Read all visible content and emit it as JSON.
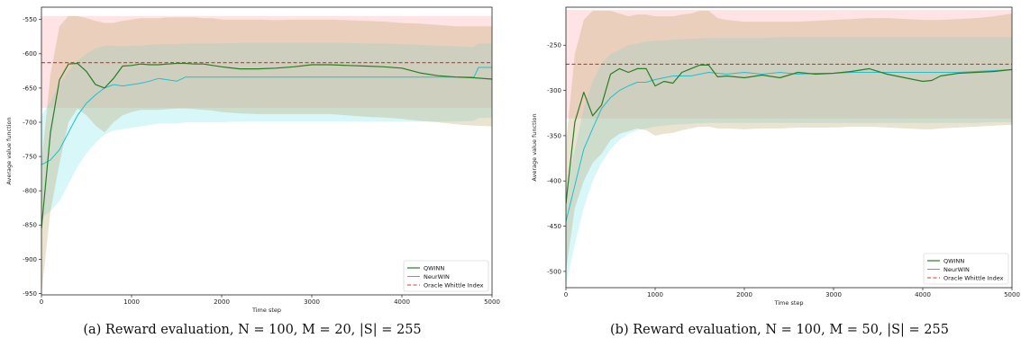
{
  "colors": {
    "qwinn": "#2a7d23",
    "neurwin": "#22bfcf",
    "oracle": "#e0302a",
    "qwinn_band": "#b39a55",
    "neurwin_band": "#7fe5ea",
    "oracle_band": "#ff9aa2"
  },
  "captions": {
    "a": "(a) Reward evaluation, N = 100, M = 20, |S| = 255",
    "b": "(b) Reward evaluation, N = 100, M = 50, |S| = 255"
  },
  "chart_data": [
    {
      "type": "line",
      "xlabel": "Time step",
      "ylabel": "Average value function",
      "xlim": [
        0,
        5000
      ],
      "ylim": [
        -952,
        -532
      ],
      "xticks": [
        0,
        1000,
        2000,
        3000,
        4000,
        5000
      ],
      "xtick_labels": [
        "0",
        "1000",
        "2000",
        "3000",
        "4000",
        "5000"
      ],
      "yticks": [
        -550,
        -600,
        -650,
        -700,
        -750,
        -800,
        -850,
        -900,
        -950
      ],
      "ytick_labels": [
        "-550",
        "-600",
        "-650",
        "-700",
        "-750",
        "-800",
        "-850",
        "-900",
        "-950"
      ],
      "legend": {
        "placement": "lower-right",
        "entries": [
          "QWINN",
          "NeurWIN",
          "Oracle Whittle Index"
        ]
      },
      "series": [
        {
          "name": "QWINN",
          "x": [
            0,
            100,
            200,
            300,
            400,
            500,
            600,
            700,
            800,
            900,
            1000,
            1100,
            1200,
            1300,
            1400,
            1500,
            1600,
            1700,
            1800,
            1900,
            2000,
            2200,
            2400,
            2600,
            2800,
            3000,
            3200,
            3400,
            3600,
            3800,
            4000,
            4200,
            4400,
            4600,
            4800,
            5000
          ],
          "y": [
            -855,
            -715,
            -638,
            -615,
            -614,
            -626,
            -645,
            -650,
            -636,
            -618,
            -617,
            -615,
            -616,
            -616,
            -615,
            -614,
            -614,
            -615,
            -615,
            -617,
            -619,
            -622,
            -622,
            -621,
            -619,
            -616,
            -616,
            -617,
            -618,
            -619,
            -621,
            -628,
            -632,
            -634,
            -635,
            -637
          ],
          "band_upper": [
            -760,
            -630,
            -560,
            -545,
            -545,
            -548,
            -552,
            -555,
            -555,
            -552,
            -550,
            -548,
            -548,
            -548,
            -547,
            -547,
            -547,
            -547,
            -548,
            -548,
            -550,
            -550,
            -550,
            -551,
            -550,
            -550,
            -550,
            -551,
            -552,
            -553,
            -555,
            -556,
            -558,
            -560,
            -560,
            -560
          ],
          "band_lower": [
            -950,
            -830,
            -760,
            -700,
            -680,
            -690,
            -705,
            -715,
            -700,
            -690,
            -685,
            -682,
            -682,
            -682,
            -681,
            -680,
            -680,
            -681,
            -682,
            -683,
            -685,
            -687,
            -688,
            -688,
            -688,
            -688,
            -688,
            -690,
            -692,
            -693,
            -695,
            -698,
            -700,
            -703,
            -705,
            -706
          ]
        },
        {
          "name": "NeurWIN",
          "x": [
            0,
            100,
            200,
            300,
            400,
            500,
            600,
            700,
            800,
            900,
            1000,
            1100,
            1200,
            1300,
            1400,
            1500,
            1600,
            1800,
            2000,
            2200,
            2400,
            2600,
            2800,
            3000,
            3200,
            3400,
            3600,
            3800,
            4000,
            4200,
            4400,
            4600,
            4800,
            4850,
            5000
          ],
          "y": [
            -762,
            -755,
            -740,
            -715,
            -690,
            -672,
            -660,
            -650,
            -645,
            -647,
            -645,
            -643,
            -640,
            -636,
            -638,
            -640,
            -634,
            -634,
            -634,
            -634,
            -634,
            -634,
            -634,
            -634,
            -634,
            -634,
            -634,
            -634,
            -634,
            -634,
            -634,
            -634,
            -634,
            -620,
            -620
          ],
          "band_upper": [
            -690,
            -670,
            -645,
            -625,
            -610,
            -600,
            -592,
            -588,
            -588,
            -589,
            -588,
            -588,
            -587,
            -586,
            -586,
            -586,
            -585,
            -585,
            -585,
            -584,
            -584,
            -584,
            -584,
            -584,
            -584,
            -584,
            -585,
            -585,
            -586,
            -587,
            -588,
            -589,
            -590,
            -585,
            -585
          ],
          "band_lower": [
            -840,
            -830,
            -815,
            -790,
            -765,
            -745,
            -730,
            -718,
            -712,
            -710,
            -708,
            -706,
            -704,
            -702,
            -702,
            -702,
            -700,
            -700,
            -700,
            -699,
            -699,
            -699,
            -699,
            -699,
            -699,
            -699,
            -699,
            -699,
            -699,
            -699,
            -699,
            -699,
            -698,
            -694,
            -693
          ]
        },
        {
          "name": "Oracle Whittle Index",
          "x": [
            0,
            5000
          ],
          "y": [
            -613,
            -613
          ],
          "band_upper": [
            -545,
            -545
          ],
          "band_lower": [
            -679,
            -679
          ]
        }
      ]
    },
    {
      "type": "line",
      "xlabel": "Time step",
      "ylabel": "Average value function",
      "xlim": [
        0,
        5000
      ],
      "ylim": [
        -518,
        -208
      ],
      "xticks": [
        0,
        1000,
        2000,
        3000,
        4000,
        5000
      ],
      "xtick_labels": [
        "0",
        "1000",
        "2000",
        "3000",
        "4000",
        "5000"
      ],
      "yticks": [
        -250,
        -300,
        -350,
        -400,
        -450,
        -500
      ],
      "ytick_labels": [
        "-250",
        "-300",
        "-350",
        "-400",
        "-450",
        "-500"
      ],
      "legend": {
        "placement": "lower-right",
        "entries": [
          "QWINN",
          "NeurWIN",
          "Oracle Whittle Index"
        ]
      },
      "series": [
        {
          "name": "QWINN",
          "x": [
            0,
            100,
            200,
            300,
            400,
            500,
            600,
            700,
            800,
            900,
            1000,
            1100,
            1200,
            1300,
            1400,
            1500,
            1600,
            1700,
            1800,
            2000,
            2200,
            2400,
            2600,
            2800,
            3000,
            3200,
            3400,
            3600,
            3800,
            4000,
            4100,
            4200,
            4400,
            4600,
            4800,
            5000
          ],
          "y": [
            -425,
            -335,
            -302,
            -328,
            -316,
            -282,
            -276,
            -280,
            -276,
            -276,
            -295,
            -290,
            -292,
            -280,
            -276,
            -272,
            -272,
            -285,
            -284,
            -286,
            -283,
            -286,
            -280,
            -282,
            -281,
            -279,
            -276,
            -282,
            -286,
            -290,
            -289,
            -284,
            -281,
            -280,
            -279,
            -277
          ],
          "band_upper": [
            -360,
            -260,
            -222,
            -212,
            -212,
            -212,
            -215,
            -218,
            -216,
            -216,
            -218,
            -218,
            -218,
            -216,
            -215,
            -212,
            -212,
            -220,
            -222,
            -224,
            -224,
            -224,
            -224,
            -223,
            -222,
            -221,
            -220,
            -220,
            -221,
            -222,
            -222,
            -222,
            -221,
            -220,
            -218,
            -215
          ],
          "band_lower": [
            -500,
            -430,
            -400,
            -380,
            -370,
            -355,
            -348,
            -345,
            -342,
            -344,
            -350,
            -348,
            -347,
            -344,
            -342,
            -340,
            -340,
            -342,
            -342,
            -343,
            -342,
            -342,
            -341,
            -341,
            -341,
            -340,
            -340,
            -341,
            -342,
            -343,
            -343,
            -342,
            -341,
            -340,
            -339,
            -338
          ]
        },
        {
          "name": "NeurWIN",
          "x": [
            0,
            100,
            200,
            300,
            400,
            500,
            600,
            700,
            800,
            900,
            1000,
            1200,
            1400,
            1600,
            1800,
            2000,
            2200,
            2400,
            2600,
            2800,
            3000,
            3200,
            3400,
            3600,
            3800,
            4000,
            4200,
            4400,
            4600,
            4800,
            5000
          ],
          "y": [
            -445,
            -405,
            -365,
            -342,
            -320,
            -308,
            -300,
            -295,
            -291,
            -291,
            -288,
            -284,
            -284,
            -280,
            -282,
            -280,
            -282,
            -280,
            -282,
            -281,
            -281,
            -280,
            -280,
            -280,
            -280,
            -280,
            -280,
            -280,
            -279,
            -278,
            -277
          ],
          "band_upper": [
            -410,
            -365,
            -320,
            -290,
            -270,
            -260,
            -255,
            -250,
            -248,
            -246,
            -245,
            -244,
            -243,
            -242,
            -242,
            -242,
            -242,
            -241,
            -241,
            -241,
            -241,
            -241,
            -241,
            -241,
            -241,
            -241,
            -241,
            -241,
            -241,
            -241,
            -241
          ],
          "band_lower": [
            -515,
            -470,
            -430,
            -400,
            -380,
            -365,
            -355,
            -348,
            -344,
            -342,
            -340,
            -338,
            -337,
            -336,
            -336,
            -336,
            -336,
            -336,
            -336,
            -336,
            -336,
            -336,
            -336,
            -336,
            -336,
            -336,
            -336,
            -336,
            -336,
            -335,
            -335
          ]
        },
        {
          "name": "Oracle Whittle Index",
          "x": [
            0,
            5000
          ],
          "y": [
            -271,
            -271
          ],
          "band_upper": [
            -211,
            -211
          ],
          "band_lower": [
            -331,
            -331
          ]
        }
      ]
    }
  ]
}
